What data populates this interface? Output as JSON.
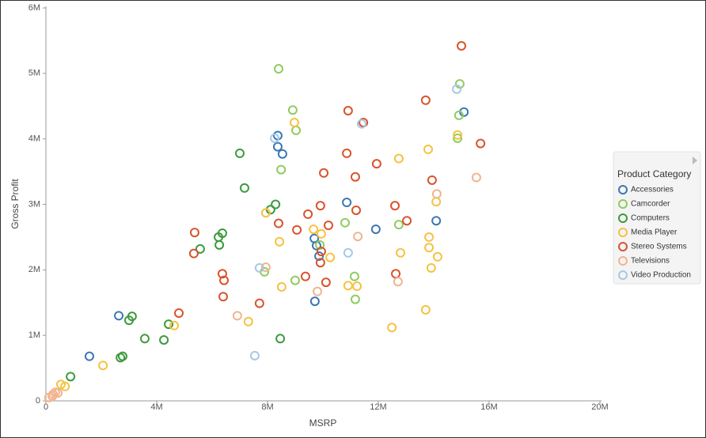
{
  "chart_data": {
    "type": "scatter",
    "x_label": "MSRP",
    "y_label": "Gross Profit",
    "legend_title": "Product Category",
    "legend_position": "right",
    "grid": false,
    "xlim": [
      0,
      20000000
    ],
    "ylim": [
      0,
      6000000
    ],
    "xticks": [
      0,
      {
        "value": 4000000,
        "label": "4M"
      },
      {
        "value": 8000000,
        "label": "8M"
      },
      {
        "value": 12000000,
        "label": "12M"
      },
      {
        "value": 16000000,
        "label": "16M"
      },
      {
        "value": 20000000,
        "label": "20M"
      }
    ],
    "yticks": [
      0,
      {
        "value": 1000000,
        "label": "1M"
      },
      {
        "value": 2000000,
        "label": "2M"
      },
      {
        "value": 3000000,
        "label": "3M"
      },
      {
        "value": 4000000,
        "label": "4M"
      },
      {
        "value": 5000000,
        "label": "5M"
      },
      {
        "value": 6000000,
        "label": "6M"
      }
    ],
    "series": [
      {
        "name": "Accessories",
        "color": "#3b78b4",
        "x": [
          2630000,
          1570000,
          8370000,
          8370000,
          8540000,
          15090000,
          14090000,
          11910000,
          10860000,
          9690000,
          9770000,
          9860000,
          9710000
        ],
        "values": [
          1300000,
          680000,
          4050000,
          3880000,
          3770000,
          4410000,
          2750000,
          2620000,
          3030000,
          2480000,
          2370000,
          2210000,
          1520000
        ]
      },
      {
        "name": "Camcorder",
        "color": "#8fcc5f",
        "x": [
          8400000,
          14940000,
          14910000,
          14860000,
          8910000,
          9030000,
          8490000,
          10800000,
          12740000,
          9890000,
          7890000,
          9000000,
          11140000,
          11170000
        ],
        "values": [
          5070000,
          4840000,
          4360000,
          4010000,
          4440000,
          4130000,
          3530000,
          2720000,
          2690000,
          2380000,
          1970000,
          1840000,
          1900000,
          1550000
        ]
      },
      {
        "name": "Computers",
        "color": "#3c9a3c",
        "x": [
          7000000,
          7170000,
          8290000,
          8110000,
          6370000,
          6230000,
          6260000,
          5570000,
          3110000,
          3000000,
          4430000,
          3570000,
          4260000,
          2690000,
          2770000,
          8460000,
          890000
        ],
        "values": [
          3780000,
          3250000,
          3000000,
          2920000,
          2560000,
          2500000,
          2380000,
          2320000,
          1290000,
          1230000,
          1170000,
          950000,
          930000,
          660000,
          680000,
          950000,
          370000
        ]
      },
      {
        "name": "Media Player",
        "color": "#f5c242",
        "x": [
          8970000,
          13800000,
          14860000,
          12740000,
          14090000,
          7940000,
          9660000,
          9940000,
          13830000,
          8430000,
          12800000,
          13830000,
          14140000,
          10260000,
          13910000,
          8510000,
          10910000,
          11230000,
          4630000,
          7310000,
          13710000,
          12490000,
          2060000,
          540000,
          690000
        ],
        "values": [
          4250000,
          3840000,
          4060000,
          3700000,
          3040000,
          2870000,
          2620000,
          2550000,
          2500000,
          2430000,
          2260000,
          2340000,
          2200000,
          2190000,
          2030000,
          1740000,
          1760000,
          1750000,
          1150000,
          1210000,
          1390000,
          1120000,
          540000,
          250000,
          220000
        ]
      },
      {
        "name": "Stereo Systems",
        "color": "#d9532c",
        "x": [
          15000000,
          13710000,
          10910000,
          11460000,
          15690000,
          10860000,
          11940000,
          10030000,
          11170000,
          13940000,
          9910000,
          9460000,
          11200000,
          12600000,
          13030000,
          8400000,
          5370000,
          9060000,
          10200000,
          9940000,
          9910000,
          5340000,
          6370000,
          6430000,
          9370000,
          10110000,
          12630000,
          6400000,
          7710000,
          4800000
        ],
        "values": [
          5420000,
          4590000,
          4430000,
          4250000,
          3930000,
          3780000,
          3620000,
          3480000,
          3420000,
          3370000,
          2980000,
          2850000,
          2910000,
          2980000,
          2750000,
          2710000,
          2570000,
          2610000,
          2680000,
          2280000,
          2110000,
          2250000,
          1940000,
          1840000,
          1900000,
          1810000,
          1940000,
          1590000,
          1490000,
          1340000
        ]
      },
      {
        "name": "Televisions",
        "color": "#f2b48f",
        "x": [
          15540000,
          14110000,
          11260000,
          7940000,
          12710000,
          9800000,
          6910000,
          110000,
          260000,
          340000,
          430000,
          230000
        ],
        "values": [
          3410000,
          3160000,
          2510000,
          2040000,
          1820000,
          1670000,
          1300000,
          50000,
          100000,
          130000,
          120000,
          70000
        ]
      },
      {
        "name": "Video Production",
        "color": "#a6c8e6",
        "x": [
          14830000,
          11400000,
          8260000,
          10910000,
          7710000,
          7540000
        ],
        "values": [
          4760000,
          4230000,
          4010000,
          2260000,
          2030000,
          690000
        ]
      }
    ]
  }
}
